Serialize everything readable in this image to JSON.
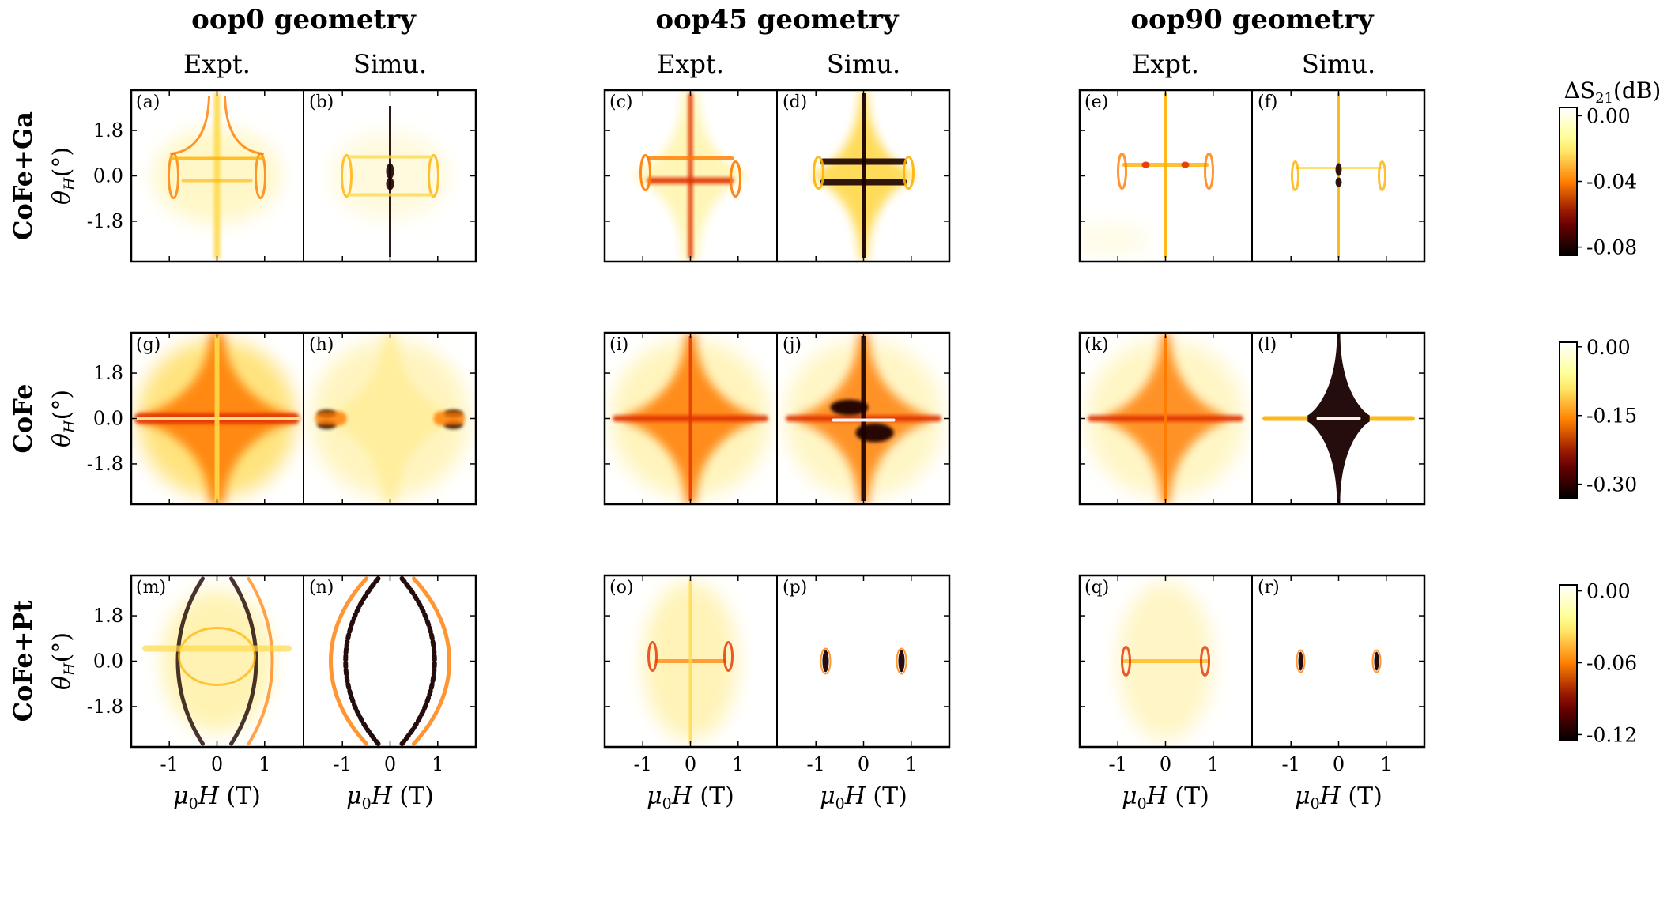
{
  "chart_data": {
    "type": "heatmap",
    "colormap": "afmhot",
    "geometries": [
      "oop0 geometry",
      "oop45 geometry",
      "oop90 geometry"
    ],
    "column_subtitles": [
      "Expt.",
      "Simu.",
      "Expt.",
      "Simu.",
      "Expt.",
      "Simu."
    ],
    "row_labels": [
      "CoFe+Ga",
      "CoFe",
      "CoFe+Pt"
    ],
    "ylabel_symbol": "θ",
    "ylabel_sub": "H",
    "ylabel_unit": "(°)",
    "xlabel_symbol": "μ",
    "xlabel_sub": "0",
    "xlabel_rest": "H",
    "xlabel_unit": "(T)",
    "x_range": [
      -1.8,
      1.8
    ],
    "y_range": [
      -3.4,
      3.4
    ],
    "x_ticks": [
      -1,
      0,
      1
    ],
    "x_tick_labels": [
      "-1",
      "0",
      "1"
    ],
    "y_ticks": [
      1.8,
      0.0,
      -1.8
    ],
    "y_tick_labels": [
      "1.8",
      "0.0",
      "-1.8"
    ],
    "colorbar_title_prefix": "ΔS",
    "colorbar_title_sub": "21",
    "colorbar_title_unit": "(dB)",
    "colorbars": [
      {
        "min": -0.085,
        "max": 0.005,
        "ticks": [
          0.0,
          -0.04,
          -0.08
        ],
        "tick_labels": [
          "0.00",
          "-0.04",
          "-0.08"
        ]
      },
      {
        "min": -0.33,
        "max": 0.01,
        "ticks": [
          0.0,
          -0.15,
          -0.3
        ],
        "tick_labels": [
          "0.00",
          "-0.15",
          "-0.30"
        ]
      },
      {
        "min": -0.125,
        "max": 0.005,
        "ticks": [
          0.0,
          -0.06,
          -0.12
        ],
        "tick_labels": [
          "0.00",
          "-0.06",
          "-0.12"
        ]
      }
    ],
    "panel_letters": [
      [
        "(a)",
        "(b)",
        "(c)",
        "(d)",
        "(e)",
        "(f)"
      ],
      [
        "(g)",
        "(h)",
        "(i)",
        "(j)",
        "(k)",
        "(l)"
      ],
      [
        "(m)",
        "(n)",
        "(o)",
        "(p)",
        "(q)",
        "(r)"
      ]
    ],
    "panel_patterns": [
      [
        "gaExp0",
        "gaSim0",
        "ga45e",
        "ga45s",
        "ga90e",
        "ga90s"
      ],
      [
        "feExp0",
        "feSim0",
        "fe45e",
        "fe45s",
        "fe90e",
        "fe90s"
      ],
      [
        "ptExp0",
        "ptSim0",
        "pt45e",
        "pt45s",
        "pt90e",
        "pt90s"
      ]
    ]
  }
}
